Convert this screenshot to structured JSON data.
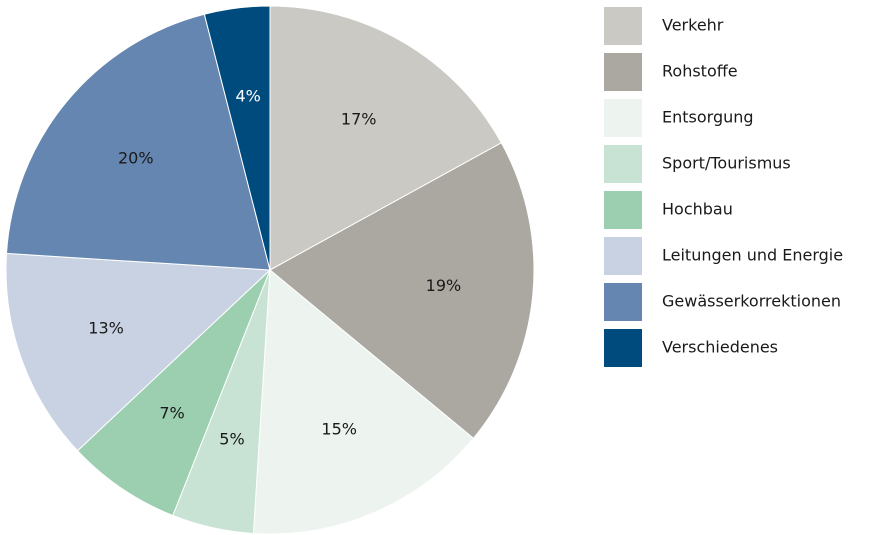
{
  "chart_data": {
    "type": "pie",
    "categories": [
      "Verkehr",
      "Rohstoffe",
      "Entsorgung",
      "Sport/Tourismus",
      "Hochbau",
      "Leitungen und Energie",
      "Gewässerkorrektionen",
      "Verschiedenes"
    ],
    "values": [
      17,
      19,
      15,
      5,
      7,
      13,
      20,
      4
    ],
    "value_labels": [
      "17%",
      "19%",
      "15%",
      "5%",
      "7%",
      "13%",
      "20%",
      "4%"
    ],
    "colors": [
      "#cbc9c4",
      "#aba8a2",
      "#edf4ef",
      "#c8e3d3",
      "#9bcfb0",
      "#c9d2e3",
      "#6486b0",
      "#004b7e"
    ],
    "legend": "right"
  }
}
